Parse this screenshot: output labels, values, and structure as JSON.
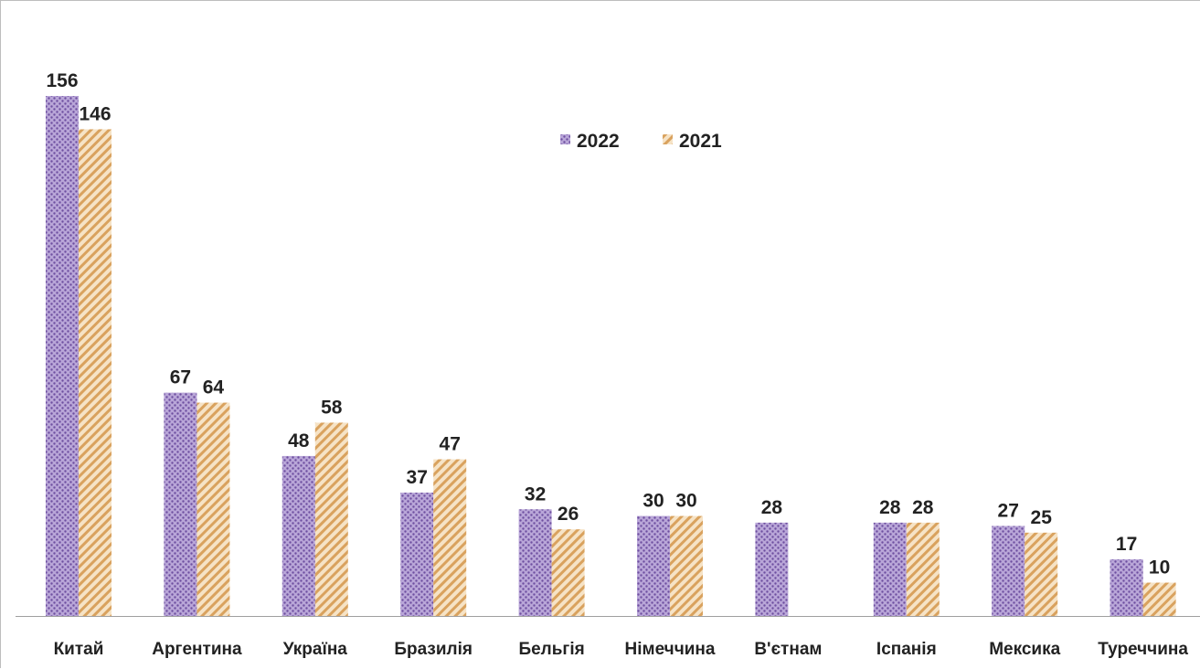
{
  "chart_data": {
    "type": "bar",
    "title": "",
    "xlabel": "",
    "ylabel": "",
    "categories": [
      "Китай",
      "Аргентина",
      "Україна",
      "Бразилія",
      "Бельгія",
      "Німеччина",
      "В'єтнам",
      "Іспанія",
      "Мексика",
      "Туреччина"
    ],
    "series": [
      {
        "name": "2022",
        "values": [
          156,
          67,
          48,
          37,
          32,
          30,
          28,
          28,
          27,
          17
        ],
        "color": "#9b7fc2"
      },
      {
        "name": "2021",
        "values": [
          146,
          64,
          58,
          47,
          26,
          30,
          null,
          28,
          25,
          10
        ],
        "color": "#e3b77a"
      }
    ],
    "ylim": [
      0,
      156
    ],
    "grid": false,
    "legend_placement": "top-center",
    "data_labels": true
  }
}
